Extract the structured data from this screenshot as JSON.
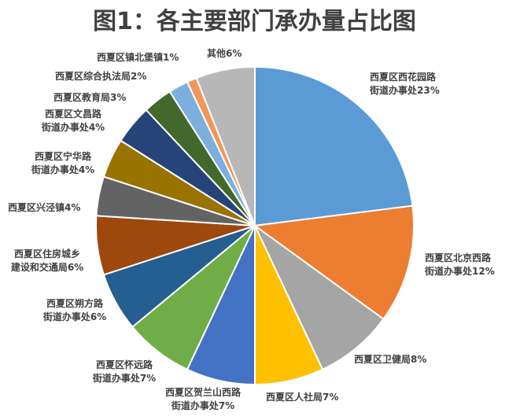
{
  "chart_data": {
    "type": "pie",
    "title": "图1：各主要部门承办量占比图",
    "slices": [
      {
        "label": "西夏区西花园路街道办事处",
        "lines": [
          "西夏区西花园路",
          "街道办事处23%"
        ],
        "value": 23,
        "color": "#5B9BD5"
      },
      {
        "label": "西夏区北京西路街道办事处",
        "lines": [
          "西夏区北京西路",
          "街道办事处12%"
        ],
        "value": 12,
        "color": "#ED7D31"
      },
      {
        "label": "西夏区卫健局",
        "lines": [
          "西夏区卫健局8%"
        ],
        "value": 8,
        "color": "#A5A5A5"
      },
      {
        "label": "西夏区人社局",
        "lines": [
          "西夏区人社局7%"
        ],
        "value": 7,
        "color": "#FFC000"
      },
      {
        "label": "西夏区贺兰山西路街道办事处",
        "lines": [
          "西夏区贺兰山西路",
          "街道办事处7%"
        ],
        "value": 7,
        "color": "#4472C4"
      },
      {
        "label": "西夏区怀远路街道办事处",
        "lines": [
          "西夏区怀远路",
          "街道办事处7%"
        ],
        "value": 7,
        "color": "#70AD47"
      },
      {
        "label": "西夏区朔方路街道办事处",
        "lines": [
          "西夏区朔方路",
          "街道办事处6%"
        ],
        "value": 6,
        "color": "#255E91"
      },
      {
        "label": "西夏区住房城乡建设和交通局",
        "lines": [
          "西夏区住房城乡",
          "建设和交通局6%"
        ],
        "value": 6,
        "color": "#9E480E"
      },
      {
        "label": "西夏区兴泾镇",
        "lines": [
          "西夏区兴泾镇4%"
        ],
        "value": 4,
        "color": "#636363"
      },
      {
        "label": "西夏区宁华路街道办事处",
        "lines": [
          "西夏区宁华路",
          "街道办事处4%"
        ],
        "value": 4,
        "color": "#997300"
      },
      {
        "label": "西夏区文昌路街道办事处",
        "lines": [
          "西夏区文昌路",
          "街道办事处4%"
        ],
        "value": 4,
        "color": "#264478"
      },
      {
        "label": "西夏区教育局",
        "lines": [
          "西夏区教育局3%"
        ],
        "value": 3,
        "color": "#43682B"
      },
      {
        "label": "西夏区综合执法局",
        "lines": [
          "西夏区综合执法局2%"
        ],
        "value": 2,
        "color": "#7CAFDD"
      },
      {
        "label": "西夏区镇北堡镇",
        "lines": [
          "西夏区镇北堡镇1%"
        ],
        "value": 1,
        "color": "#F1975A"
      },
      {
        "label": "其他",
        "lines": [
          "其他6%"
        ],
        "value": 6,
        "color": "#B7B7B7"
      }
    ]
  }
}
